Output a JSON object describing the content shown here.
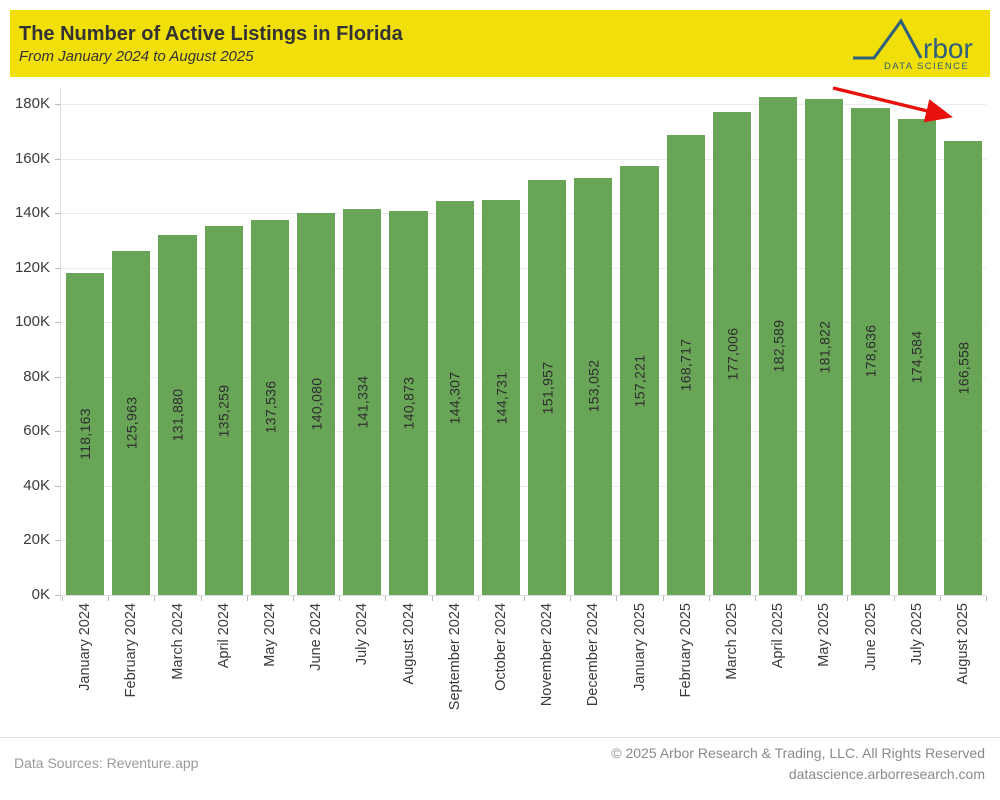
{
  "chart_data": {
    "type": "bar",
    "title": "The Number of Active Listings in Florida",
    "subtitle": "From January 2024 to August 2025",
    "categories": [
      "January 2024",
      "February 2024",
      "March 2024",
      "April 2024",
      "May 2024",
      "June 2024",
      "July 2024",
      "August 2024",
      "September 2024",
      "October 2024",
      "November 2024",
      "December 2024",
      "January 2025",
      "February 2025",
      "March 2025",
      "April 2025",
      "May 2025",
      "June 2025",
      "July 2025",
      "August 2025"
    ],
    "values": [
      118163,
      125963,
      131880,
      135259,
      137536,
      140080,
      141334,
      140873,
      144307,
      144731,
      151957,
      153052,
      157221,
      168717,
      177006,
      182589,
      181822,
      178636,
      174584,
      166558
    ],
    "ytick_labels": [
      "0K",
      "20K",
      "40K",
      "60K",
      "80K",
      "100K",
      "120K",
      "140K",
      "160K",
      "180K"
    ],
    "ytick_interval": 20000,
    "ylim": [
      0,
      190000
    ],
    "grid": "horizontal",
    "legend": "none",
    "value_label_style": "inside-bar-rotated",
    "annotations": [
      {
        "type": "arrow",
        "direction": "down-right",
        "color": "#E8120C"
      }
    ]
  },
  "header": {
    "logo": {
      "brand": "Arbor",
      "word": "rbor",
      "tagline": "DATA SCIENCE"
    }
  },
  "footer": {
    "source": "Data Sources: Reventure.app",
    "copyright": "© 2025 Arbor Research & Trading, LLC. All Rights Reserved",
    "website": "datascience.arborresearch.com"
  },
  "colors": {
    "header_bg": "#F1DF0A",
    "bar": "#68A556",
    "logo_blue": "#2E5F7D",
    "arrow_red": "#E8120C",
    "title_text": "#333333",
    "axis_text": "#3B3B3B",
    "footer_text": "#9A9A9A",
    "gridline": "#EBEBEB"
  }
}
